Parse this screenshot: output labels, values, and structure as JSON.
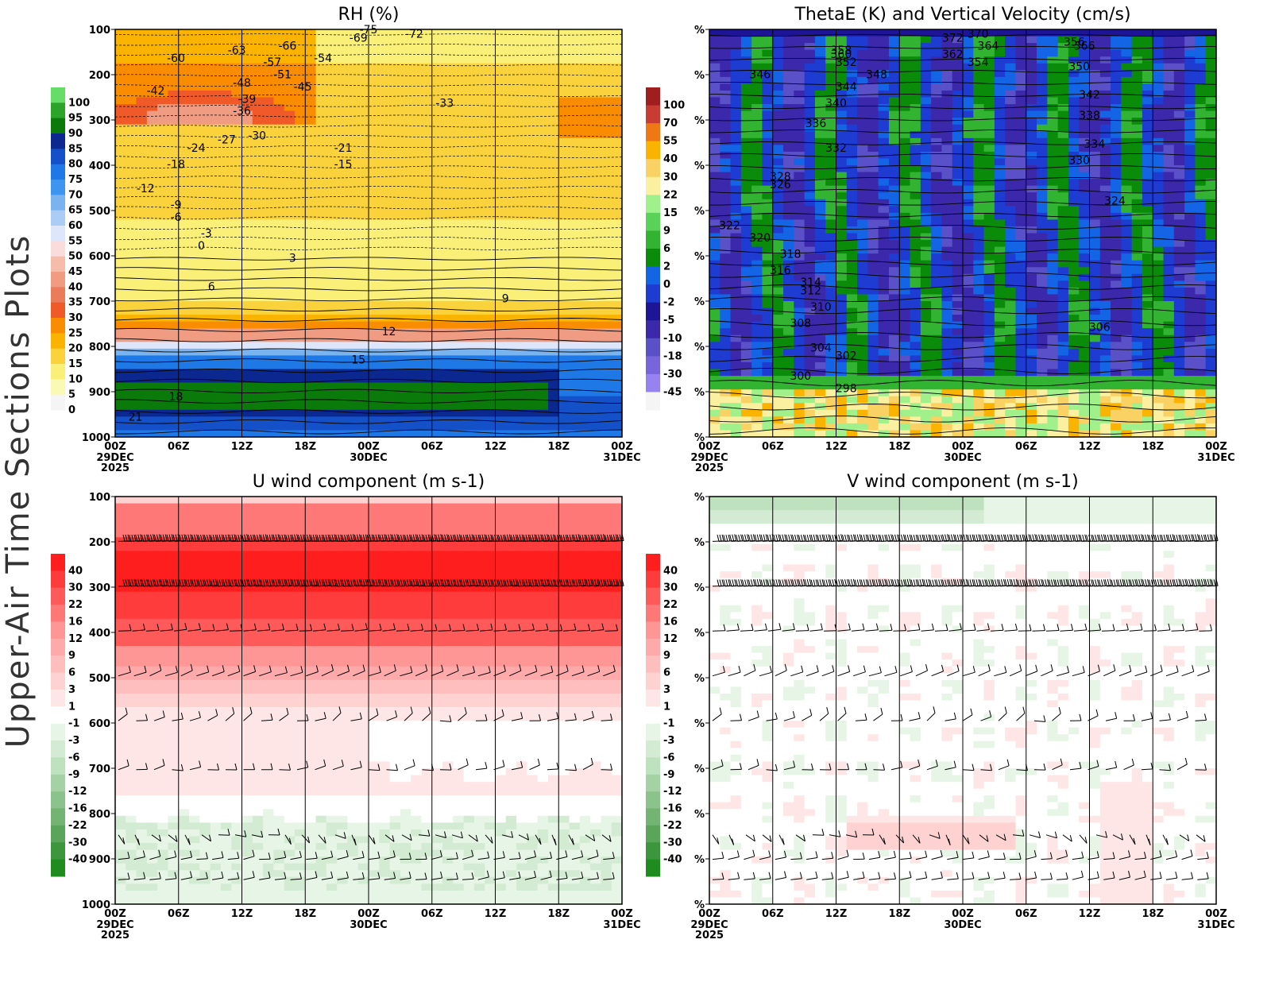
{
  "figure": {
    "side_title": "Upper-Air Time Sections Plots"
  },
  "chart_data": [
    {
      "id": "rh",
      "type": "heatmap",
      "title": "RH (%)",
      "ylabel": "Pressure (hPa)",
      "y_ticks": [
        "100",
        "200",
        "300",
        "400",
        "500",
        "600",
        "700",
        "800",
        "900",
        "1000"
      ],
      "x_ticks": [
        {
          "t": "00Z",
          "d": "29DEC",
          "y": "2025"
        },
        {
          "t": "06Z"
        },
        {
          "t": "12Z"
        },
        {
          "t": "18Z"
        },
        {
          "t": "00Z",
          "d": "30DEC"
        },
        {
          "t": "06Z"
        },
        {
          "t": "12Z"
        },
        {
          "t": "18Z"
        },
        {
          "t": "00Z",
          "d": "31DEC"
        }
      ],
      "colorbar": {
        "levels": [
          "100",
          "95",
          "90",
          "85",
          "80",
          "75",
          "70",
          "65",
          "60",
          "55",
          "50",
          "45",
          "40",
          "35",
          "30",
          "25",
          "20",
          "15",
          "10",
          "5",
          "0"
        ],
        "colors": [
          "#66dd66",
          "#2aa52a",
          "#0a7a0a",
          "#0a2890",
          "#1450c8",
          "#1e78e6",
          "#3c96f0",
          "#7ab4f0",
          "#aaccf5",
          "#dde6fa",
          "#fadcdc",
          "#f5bcaa",
          "#f09c82",
          "#eb7c5a",
          "#f05a28",
          "#fa8c00",
          "#fab400",
          "#fad23c",
          "#faf078",
          "#fafab4",
          "#f5f5f5"
        ]
      },
      "contour_labels": [
        "-75",
        "-72",
        "-69",
        "-66",
        "-63",
        "-60",
        "-57",
        "-54",
        "-51",
        "-48",
        "-45",
        "-42",
        "-39",
        "-36",
        "-33",
        "-30",
        "-27",
        "-24",
        "-21",
        "-18",
        "-15",
        "-12",
        "-9",
        "-6",
        "-3",
        "0",
        "3",
        "6",
        "9",
        "12",
        "15",
        "18",
        "21"
      ]
    },
    {
      "id": "thetae",
      "type": "heatmap",
      "title": "ThetaE (K) and Vertical Velocity (cm/s)",
      "y_tick_label": "%",
      "x_ticks": [
        {
          "t": "00Z",
          "d": "29DEC",
          "y": "2025"
        },
        {
          "t": "06Z"
        },
        {
          "t": "12Z"
        },
        {
          "t": "18Z"
        },
        {
          "t": "00Z",
          "d": "30DEC"
        },
        {
          "t": "06Z"
        },
        {
          "t": "12Z"
        },
        {
          "t": "18Z"
        },
        {
          "t": "00Z",
          "d": "31DEC"
        }
      ],
      "colorbar": {
        "levels": [
          "100",
          "70",
          "55",
          "40",
          "30",
          "22",
          "15",
          "9",
          "6",
          "2",
          "0",
          "-2",
          "-5",
          "-10",
          "-18",
          "-30",
          "-45"
        ],
        "colors": [
          "#a01e1e",
          "#c83c32",
          "#f07814",
          "#fab400",
          "#fad264",
          "#faf0a0",
          "#a0f08c",
          "#5ad25a",
          "#32b432",
          "#0a8c0a",
          "#1464e6",
          "#1e3cd2",
          "#1e1496",
          "#3c28aa",
          "#5a50c8",
          "#7864dc",
          "#9682f0",
          "#f5f5f5"
        ]
      },
      "contour_labels": [
        "372",
        "370",
        "366",
        "364",
        "362",
        "360",
        "358",
        "356",
        "354",
        "352",
        "350",
        "348",
        "346",
        "344",
        "342",
        "340",
        "338",
        "336",
        "334",
        "332",
        "330",
        "328",
        "326",
        "324",
        "322",
        "320",
        "318",
        "316",
        "314",
        "312",
        "310",
        "308",
        "306",
        "304",
        "302",
        "300",
        "298"
      ]
    },
    {
      "id": "uwind",
      "type": "heatmap",
      "title": "U wind component (m s-1)",
      "y_ticks": [
        "100",
        "200",
        "300",
        "400",
        "500",
        "600",
        "700",
        "800",
        "900",
        "1000"
      ],
      "x_ticks": [
        {
          "t": "00Z",
          "d": "29DEC",
          "y": "2025"
        },
        {
          "t": "06Z"
        },
        {
          "t": "12Z"
        },
        {
          "t": "18Z"
        },
        {
          "t": "00Z",
          "d": "30DEC"
        },
        {
          "t": "06Z"
        },
        {
          "t": "12Z"
        },
        {
          "t": "18Z"
        },
        {
          "t": "00Z",
          "d": "31DEC"
        }
      ],
      "colorbar": {
        "levels": [
          "40",
          "30",
          "22",
          "16",
          "12",
          "9",
          "6",
          "3",
          "1",
          "-1",
          "-3",
          "-6",
          "-9",
          "-12",
          "-16",
          "-22",
          "-30",
          "-40"
        ],
        "colors": [
          "#ff1e1e",
          "#ff3c3c",
          "#ff5a5a",
          "#ff7878",
          "#ff9696",
          "#ffaaaa",
          "#ffbebe",
          "#ffd2d2",
          "#ffe6e6",
          "#ffffff",
          "#e6f5e6",
          "#d2ebd2",
          "#bee1be",
          "#a5d2a5",
          "#8cc38c",
          "#73b473",
          "#5aa55a",
          "#3c963c",
          "#1e8c1e"
        ]
      }
    },
    {
      "id": "vwind",
      "type": "heatmap",
      "title": "V wind component (m s-1)",
      "y_tick_label": "%",
      "x_ticks": [
        {
          "t": "00Z",
          "d": "29DEC",
          "y": "2025"
        },
        {
          "t": "06Z"
        },
        {
          "t": "12Z"
        },
        {
          "t": "18Z"
        },
        {
          "t": "00Z",
          "d": "30DEC"
        },
        {
          "t": "06Z"
        },
        {
          "t": "12Z"
        },
        {
          "t": "18Z"
        },
        {
          "t": "00Z",
          "d": "31DEC"
        }
      ],
      "colorbar": {
        "levels": [
          "40",
          "30",
          "22",
          "16",
          "12",
          "9",
          "6",
          "3",
          "1",
          "-1",
          "-3",
          "-6",
          "-9",
          "-12",
          "-16",
          "-22",
          "-30",
          "-40"
        ],
        "colors": [
          "#ff1e1e",
          "#ff3c3c",
          "#ff5a5a",
          "#ff7878",
          "#ff9696",
          "#ffaaaa",
          "#ffbebe",
          "#ffd2d2",
          "#ffe6e6",
          "#ffffff",
          "#e6f5e6",
          "#d2ebd2",
          "#bee1be",
          "#a5d2a5",
          "#8cc38c",
          "#73b473",
          "#5aa55a",
          "#3c963c",
          "#1e8c1e"
        ]
      }
    }
  ]
}
